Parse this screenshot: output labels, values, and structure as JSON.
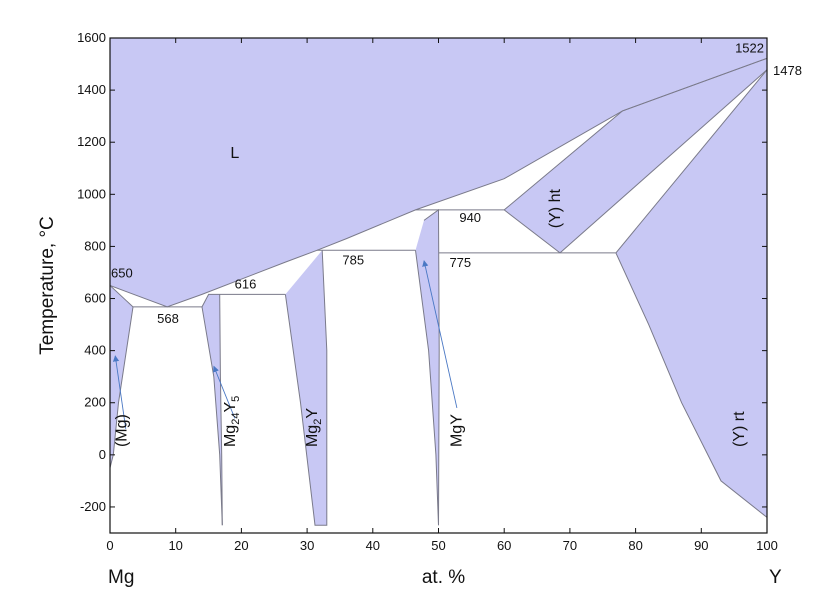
{
  "chart_data": {
    "type": "area",
    "title": "",
    "xlabel": "at. %",
    "ylabel": "Temperature, °C",
    "xlim": [
      0,
      100
    ],
    "ylim": [
      -300,
      1600
    ],
    "x_ticks": [
      "0",
      "10",
      "20",
      "30",
      "40",
      "50",
      "60",
      "70",
      "80",
      "90",
      "100"
    ],
    "y_ticks": [
      "-200",
      "0",
      "200",
      "400",
      "600",
      "800",
      "1000",
      "1200",
      "1400",
      "1600"
    ],
    "x_end_labels": {
      "left": "Mg",
      "right": "Y"
    },
    "grid": false,
    "colors": {
      "fill": "#c8c8f4",
      "line": "#7a7a8a",
      "arrow": "#4a78c4",
      "frame": "#111111"
    },
    "point_labels": [
      {
        "text": "650",
        "x": 0,
        "y": 650
      },
      {
        "text": "568",
        "x": 8.7,
        "y": 568
      },
      {
        "text": "616",
        "x": 20.5,
        "y": 616
      },
      {
        "text": "785",
        "x": 37.2,
        "y": 785
      },
      {
        "text": "775",
        "x": 53.8,
        "y": 775
      },
      {
        "text": "940",
        "x": 55.0,
        "y": 940
      },
      {
        "text": "1522",
        "x": 100,
        "y": 1522
      },
      {
        "text": "1478",
        "x": 100,
        "y": 1478
      }
    ],
    "phase_labels": [
      {
        "text": "L",
        "x": 19.0,
        "y": 1140,
        "rotate": 0
      },
      {
        "text": "(Mg)",
        "x": 2.5,
        "y": 30,
        "rotate": -90
      },
      {
        "text": "Mg24Y5",
        "x": 19.0,
        "y": 30,
        "rotate": -90,
        "parts": [
          "Mg",
          "24",
          "Y",
          "5"
        ]
      },
      {
        "text": "Mg2Y",
        "x": 31.5,
        "y": 30,
        "rotate": -90,
        "parts": [
          "Mg",
          "2",
          "Y"
        ]
      },
      {
        "text": "MgY",
        "x": 53.5,
        "y": 30,
        "rotate": -90
      },
      {
        "text": "(Y) ht",
        "x": 68.5,
        "y": 870,
        "rotate": -90
      },
      {
        "text": "(Y) rt",
        "x": 96.5,
        "y": 30,
        "rotate": -90
      }
    ],
    "arrows": [
      {
        "from": [
          2.4,
          100
        ],
        "to": [
          0.8,
          380
        ]
      },
      {
        "from": [
          19.0,
          140
        ],
        "to": [
          15.8,
          340
        ]
      },
      {
        "from": [
          52.8,
          180
        ],
        "to": [
          47.8,
          745
        ]
      }
    ],
    "phase_regions": [
      {
        "name": "L",
        "points": [
          [
            0,
            1600
          ],
          [
            0,
            650
          ],
          [
            8.7,
            568
          ],
          [
            14.0,
            616
          ],
          [
            26.7,
            740
          ],
          [
            31.5,
            785
          ],
          [
            36.0,
            830
          ],
          [
            46.5,
            940
          ],
          [
            60.0,
            1060
          ],
          [
            78.0,
            1320
          ],
          [
            100,
            1522
          ],
          [
            100,
            1600
          ]
        ]
      },
      {
        "name": "(Mg)",
        "points": [
          [
            0,
            650
          ],
          [
            3.5,
            568
          ],
          [
            2.5,
            400
          ],
          [
            1.3,
            200
          ],
          [
            0.5,
            0
          ],
          [
            0,
            -50
          ]
        ]
      },
      {
        "name": "Mg24Y5",
        "points": [
          [
            14.0,
            568
          ],
          [
            15.0,
            616
          ],
          [
            16.7,
            616
          ],
          [
            16.8,
            300
          ],
          [
            17.0,
            0
          ],
          [
            17.1,
            -270
          ],
          [
            16.7,
            0
          ],
          [
            15.8,
            300
          ]
        ]
      },
      {
        "name": "Mg2Y",
        "points": [
          [
            26.7,
            616
          ],
          [
            32.3,
            785
          ],
          [
            33.0,
            400
          ],
          [
            33.0,
            -270
          ],
          [
            31.2,
            -270
          ],
          [
            29.0,
            200
          ]
        ]
      },
      {
        "name": "MgY",
        "points": [
          [
            46.5,
            785
          ],
          [
            47.8,
            900
          ],
          [
            50.0,
            940
          ],
          [
            50.1,
            400
          ],
          [
            50.0,
            -270
          ],
          [
            49.6,
            0
          ],
          [
            48.5,
            400
          ]
        ]
      },
      {
        "name": "(Y) ht",
        "points": [
          [
            60.0,
            940
          ],
          [
            68.5,
            775
          ],
          [
            100,
            1478
          ],
          [
            100,
            1522
          ],
          [
            78.0,
            1320
          ]
        ]
      },
      {
        "name": "(Y) rt",
        "points": [
          [
            77.0,
            775
          ],
          [
            100,
            1478
          ],
          [
            100,
            -240
          ],
          [
            93.0,
            -100
          ],
          [
            87.0,
            200
          ],
          [
            82.0,
            500
          ]
        ]
      }
    ],
    "lines": [
      [
        [
          0,
          650
        ],
        [
          8.7,
          568
        ],
        [
          14.0,
          616
        ],
        [
          26.7,
          740
        ],
        [
          31.5,
          785
        ],
        [
          36.0,
          830
        ],
        [
          46.5,
          940
        ],
        [
          60.0,
          1060
        ],
        [
          78.0,
          1320
        ],
        [
          100,
          1522
        ]
      ],
      [
        [
          0,
          650
        ],
        [
          3.5,
          568
        ],
        [
          2.5,
          400
        ],
        [
          1.3,
          200
        ],
        [
          0.5,
          0
        ],
        [
          0,
          -50
        ]
      ],
      [
        [
          3.5,
          568
        ],
        [
          14.0,
          568
        ]
      ],
      [
        [
          14.0,
          568
        ],
        [
          15.0,
          616
        ],
        [
          26.7,
          616
        ]
      ],
      [
        [
          16.7,
          616
        ],
        [
          16.8,
          300
        ],
        [
          17.0,
          0
        ],
        [
          17.1,
          -270
        ]
      ],
      [
        [
          14.0,
          568
        ],
        [
          15.8,
          300
        ],
        [
          16.7,
          0
        ],
        [
          17.1,
          -270
        ]
      ],
      [
        [
          26.7,
          616
        ],
        [
          29.0,
          200
        ],
        [
          31.2,
          -270
        ],
        [
          33.0,
          -270
        ],
        [
          33.0,
          400
        ],
        [
          32.3,
          785
        ]
      ],
      [
        [
          31.5,
          785
        ],
        [
          46.5,
          785
        ]
      ],
      [
        [
          46.5,
          785
        ],
        [
          48.5,
          400
        ],
        [
          49.6,
          0
        ],
        [
          50.0,
          -270
        ]
      ],
      [
        [
          47.8,
          900
        ],
        [
          50.0,
          940
        ],
        [
          50.1,
          400
        ],
        [
          50.0,
          -270
        ]
      ],
      [
        [
          50.0,
          775
        ],
        [
          77.0,
          775
        ]
      ],
      [
        [
          46.5,
          940
        ],
        [
          60.0,
          940
        ],
        [
          68.5,
          775
        ]
      ],
      [
        [
          60.0,
          940
        ],
        [
          78.0,
          1320
        ],
        [
          100,
          1522
        ]
      ],
      [
        [
          68.5,
          775
        ],
        [
          100,
          1478
        ]
      ],
      [
        [
          77.0,
          775
        ],
        [
          100,
          1478
        ]
      ],
      [
        [
          77.0,
          775
        ],
        [
          82.0,
          500
        ],
        [
          87.0,
          200
        ],
        [
          93.0,
          -100
        ],
        [
          100,
          -240
        ]
      ]
    ]
  }
}
